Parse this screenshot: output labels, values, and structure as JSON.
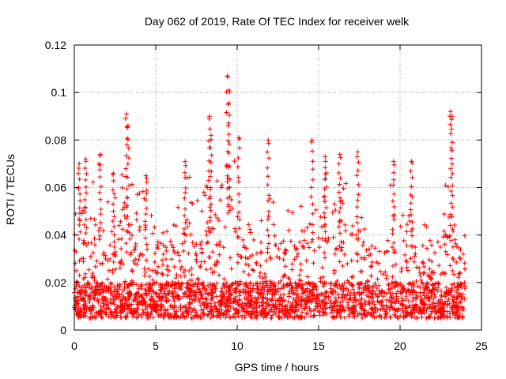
{
  "chart_data": {
    "type": "scatter",
    "title": "Day 062 of 2019, Rate Of TEC Index for receiver welk",
    "xlabel": "GPS time / hours",
    "ylabel": "ROTI / TECUs",
    "xlim": [
      0,
      25
    ],
    "ylim": [
      0,
      0.12
    ],
    "xticks": [
      0,
      5,
      10,
      15,
      20,
      25
    ],
    "yticks": [
      0,
      0.02,
      0.04,
      0.06,
      0.08,
      0.1,
      0.12
    ],
    "xtick_labels": [
      "0",
      "5",
      "10",
      "15",
      "20",
      "25"
    ],
    "ytick_labels": [
      "0",
      "0.02",
      "0.04",
      "0.06",
      "0.08",
      "0.1",
      "0.12"
    ],
    "grid": true,
    "marker": "plus",
    "series_color": "#ff0000",
    "x_extent": [
      0,
      24
    ],
    "peaks": [
      {
        "x": 0.3,
        "y": 0.07
      },
      {
        "x": 0.7,
        "y": 0.072
      },
      {
        "x": 1.6,
        "y": 0.074
      },
      {
        "x": 2.4,
        "y": 0.066
      },
      {
        "x": 3.2,
        "y": 0.091
      },
      {
        "x": 3.3,
        "y": 0.086
      },
      {
        "x": 4.4,
        "y": 0.065
      },
      {
        "x": 6.8,
        "y": 0.071
      },
      {
        "x": 8.3,
        "y": 0.09
      },
      {
        "x": 8.4,
        "y": 0.082
      },
      {
        "x": 9.4,
        "y": 0.107
      },
      {
        "x": 9.5,
        "y": 0.101
      },
      {
        "x": 10.1,
        "y": 0.081
      },
      {
        "x": 11.9,
        "y": 0.08
      },
      {
        "x": 14.6,
        "y": 0.08
      },
      {
        "x": 15.4,
        "y": 0.073
      },
      {
        "x": 16.3,
        "y": 0.074
      },
      {
        "x": 17.4,
        "y": 0.075
      },
      {
        "x": 19.6,
        "y": 0.071
      },
      {
        "x": 20.7,
        "y": 0.071
      },
      {
        "x": 23.1,
        "y": 0.092
      },
      {
        "x": 23.2,
        "y": 0.09
      }
    ],
    "envelope": [
      [
        0,
        0.048
      ],
      [
        0.5,
        0.068
      ],
      [
        1,
        0.06
      ],
      [
        1.5,
        0.065
      ],
      [
        2,
        0.05
      ],
      [
        2.5,
        0.055
      ],
      [
        3,
        0.07
      ],
      [
        3.5,
        0.058
      ],
      [
        4,
        0.055
      ],
      [
        4.5,
        0.06
      ],
      [
        5,
        0.055
      ],
      [
        5.5,
        0.045
      ],
      [
        6,
        0.042
      ],
      [
        6.5,
        0.05
      ],
      [
        7,
        0.062
      ],
      [
        7.5,
        0.05
      ],
      [
        8,
        0.058
      ],
      [
        8.5,
        0.07
      ],
      [
        9,
        0.06
      ],
      [
        9.5,
        0.08
      ],
      [
        10,
        0.065
      ],
      [
        10.5,
        0.045
      ],
      [
        11,
        0.04
      ],
      [
        11.5,
        0.045
      ],
      [
        12,
        0.065
      ],
      [
        12.5,
        0.05
      ],
      [
        13,
        0.045
      ],
      [
        13.5,
        0.048
      ],
      [
        14,
        0.05
      ],
      [
        14.5,
        0.058
      ],
      [
        15,
        0.055
      ],
      [
        15.5,
        0.062
      ],
      [
        16,
        0.06
      ],
      [
        16.5,
        0.065
      ],
      [
        17,
        0.055
      ],
      [
        17.5,
        0.06
      ],
      [
        18,
        0.05
      ],
      [
        18.5,
        0.045
      ],
      [
        19,
        0.042
      ],
      [
        19.5,
        0.06
      ],
      [
        20,
        0.048
      ],
      [
        20.5,
        0.06
      ],
      [
        21,
        0.05
      ],
      [
        21.5,
        0.045
      ],
      [
        22,
        0.04
      ],
      [
        22.5,
        0.045
      ],
      [
        23,
        0.065
      ],
      [
        23.5,
        0.045
      ],
      [
        24,
        0.04
      ]
    ],
    "baseline_range": [
      0.005,
      0.02
    ],
    "sample_count": 2600
  }
}
